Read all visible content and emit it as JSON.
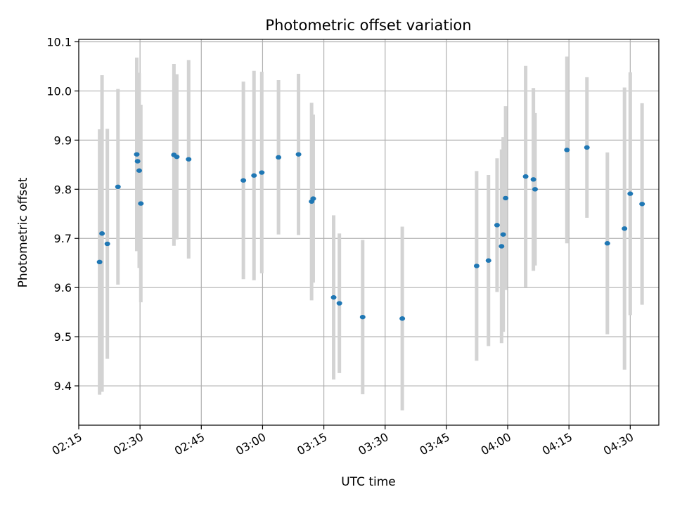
{
  "chart_data": {
    "type": "scatter",
    "title": "Photometric offset variation",
    "xlabel": "UTC time",
    "ylabel": "Photometric offset",
    "x_ticks": [
      "02:15",
      "02:30",
      "02:45",
      "03:00",
      "03:15",
      "03:30",
      "03:45",
      "04:00",
      "04:15",
      "04:30"
    ],
    "y_ticks": [
      "9.4",
      "9.5",
      "9.6",
      "9.7",
      "9.8",
      "9.9",
      "10.0",
      "10.1"
    ],
    "xlim": [
      "02:15:00",
      "04:37:00"
    ],
    "ylim": [
      9.32,
      10.105
    ],
    "grid": true,
    "marker_color": "#1f77b4",
    "errorbar_color": "#d3d3d3",
    "points": [
      {
        "time": "02:20:06",
        "y": 9.652,
        "yerr": 0.27
      },
      {
        "time": "02:20:42",
        "y": 9.71,
        "yerr": 0.322
      },
      {
        "time": "02:22:00",
        "y": 9.689,
        "yerr": 0.234
      },
      {
        "time": "02:24:36",
        "y": 9.805,
        "yerr": 0.199
      },
      {
        "time": "02:29:12",
        "y": 9.871,
        "yerr": 0.197
      },
      {
        "time": "02:29:24",
        "y": 9.857,
        "yerr": 0.18
      },
      {
        "time": "02:29:48",
        "y": 9.838,
        "yerr": 0.198
      },
      {
        "time": "02:30:12",
        "y": 9.771,
        "yerr": 0.201
      },
      {
        "time": "02:38:18",
        "y": 9.87,
        "yerr": 0.185
      },
      {
        "time": "02:39:00",
        "y": 9.866,
        "yerr": 0.168
      },
      {
        "time": "02:41:54",
        "y": 9.861,
        "yerr": 0.202
      },
      {
        "time": "02:55:18",
        "y": 9.818,
        "yerr": 0.201
      },
      {
        "time": "02:57:54",
        "y": 9.828,
        "yerr": 0.213
      },
      {
        "time": "02:59:48",
        "y": 9.834,
        "yerr": 0.205
      },
      {
        "time": "03:03:54",
        "y": 9.865,
        "yerr": 0.157
      },
      {
        "time": "03:08:48",
        "y": 9.871,
        "yerr": 0.164
      },
      {
        "time": "03:12:00",
        "y": 9.775,
        "yerr": 0.201
      },
      {
        "time": "03:12:24",
        "y": 9.781,
        "yerr": 0.171
      },
      {
        "time": "03:17:24",
        "y": 9.58,
        "yerr": 0.167
      },
      {
        "time": "03:18:48",
        "y": 9.568,
        "yerr": 0.142
      },
      {
        "time": "03:24:30",
        "y": 9.54,
        "yerr": 0.157
      },
      {
        "time": "03:34:12",
        "y": 9.537,
        "yerr": 0.187
      },
      {
        "time": "03:52:24",
        "y": 9.644,
        "yerr": 0.193
      },
      {
        "time": "03:55:18",
        "y": 9.655,
        "yerr": 0.174
      },
      {
        "time": "03:57:24",
        "y": 9.727,
        "yerr": 0.136
      },
      {
        "time": "03:58:30",
        "y": 9.684,
        "yerr": 0.197
      },
      {
        "time": "03:58:54",
        "y": 9.708,
        "yerr": 0.198
      },
      {
        "time": "03:59:30",
        "y": 9.782,
        "yerr": 0.187
      },
      {
        "time": "04:04:24",
        "y": 9.826,
        "yerr": 0.225
      },
      {
        "time": "04:06:18",
        "y": 9.82,
        "yerr": 0.186
      },
      {
        "time": "04:06:42",
        "y": 9.8,
        "yerr": 0.155
      },
      {
        "time": "04:14:30",
        "y": 9.88,
        "yerr": 0.19
      },
      {
        "time": "04:19:24",
        "y": 9.885,
        "yerr": 0.143
      },
      {
        "time": "04:24:24",
        "y": 9.69,
        "yerr": 0.185
      },
      {
        "time": "04:28:36",
        "y": 9.72,
        "yerr": 0.287
      },
      {
        "time": "04:30:00",
        "y": 9.791,
        "yerr": 0.247
      },
      {
        "time": "04:32:54",
        "y": 9.77,
        "yerr": 0.205
      }
    ]
  }
}
